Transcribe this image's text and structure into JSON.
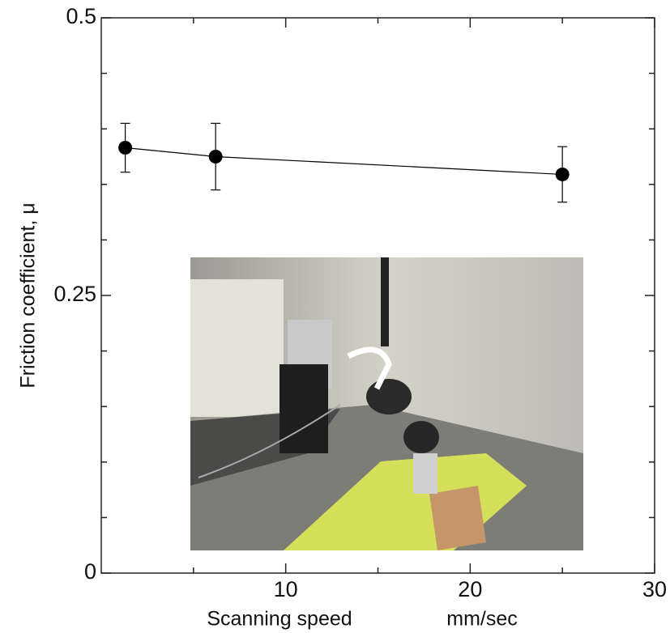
{
  "chart_data": {
    "type": "line",
    "xlabel": "Scanning speed",
    "xunit": "mm/sec",
    "ylabel": "Friction coefficient, μ",
    "x": [
      1.3,
      6.2,
      25
    ],
    "series": [
      {
        "color": "#000000",
        "values": [
          0.383,
          0.375,
          0.359
        ],
        "errors": [
          0.022,
          0.03,
          0.025
        ]
      }
    ],
    "xlim": [
      0,
      30
    ],
    "xticks": [
      10,
      20,
      30
    ],
    "xminorticks": [
      5,
      15,
      25
    ],
    "ylim": [
      0,
      0.5
    ],
    "yticks": [
      0,
      0.25,
      0.5
    ],
    "yminorticks": [
      0.05,
      0.1,
      0.15,
      0.2,
      0.3,
      0.35,
      0.4,
      0.45
    ]
  }
}
